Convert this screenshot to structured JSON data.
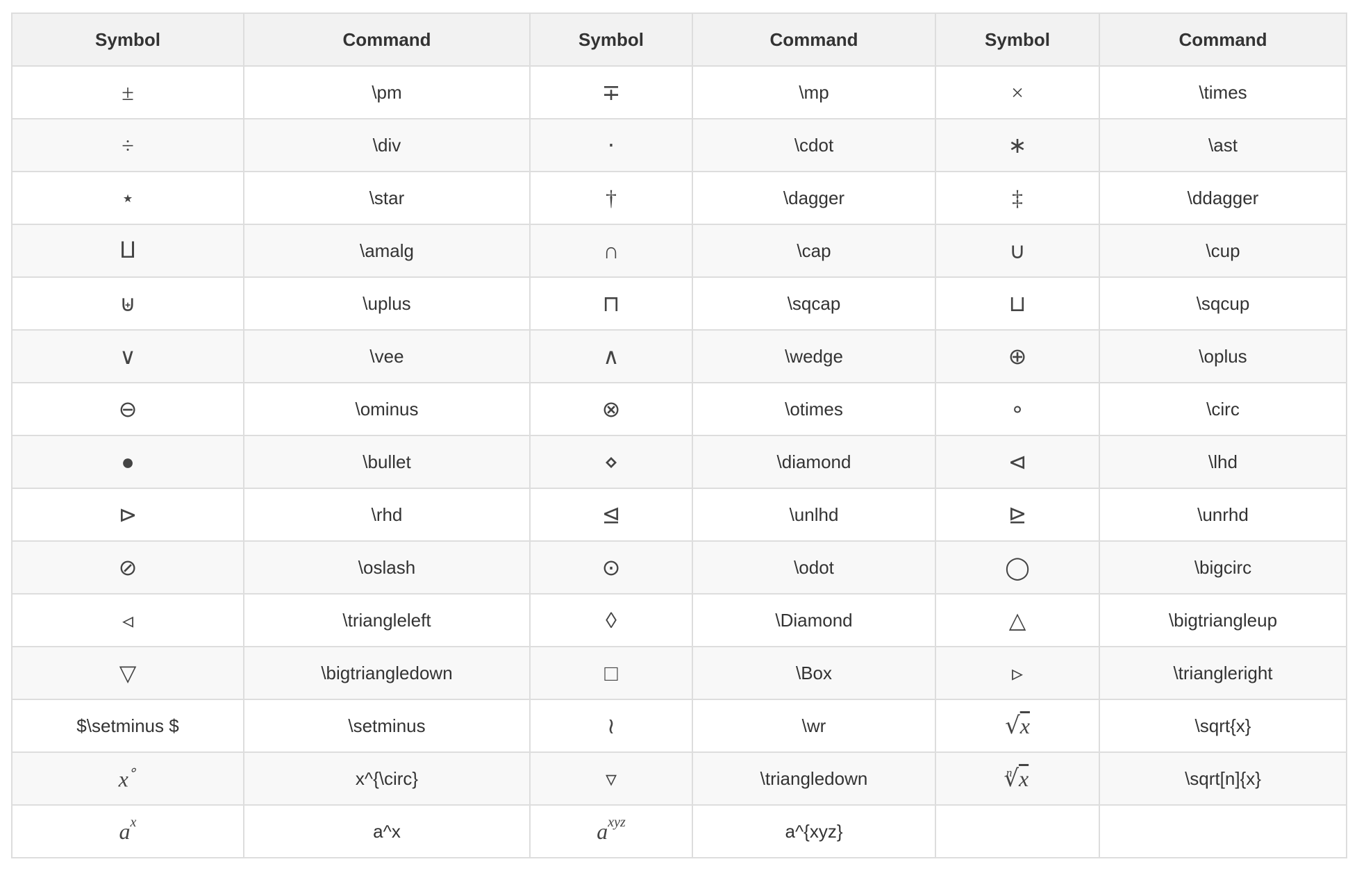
{
  "headers": [
    "Symbol",
    "Command",
    "Symbol",
    "Command",
    "Symbol",
    "Command"
  ],
  "rows": [
    [
      {
        "s": "±",
        "c": "\\pm"
      },
      {
        "s": "∓",
        "c": "\\mp"
      },
      {
        "s": "×",
        "c": "\\times"
      }
    ],
    [
      {
        "s": "÷",
        "c": "\\div"
      },
      {
        "s": "⋅",
        "c": "\\cdot"
      },
      {
        "s": "∗",
        "c": "\\ast"
      }
    ],
    [
      {
        "s": "⋆",
        "c": "\\star"
      },
      {
        "s": "†",
        "c": "\\dagger"
      },
      {
        "s": "‡",
        "c": "\\ddagger"
      }
    ],
    [
      {
        "s": "⨿",
        "c": "\\amalg"
      },
      {
        "s": "∩",
        "c": "\\cap"
      },
      {
        "s": "∪",
        "c": "\\cup"
      }
    ],
    [
      {
        "s": "⊎",
        "c": "\\uplus"
      },
      {
        "s": "⊓",
        "c": "\\sqcap"
      },
      {
        "s": "⊔",
        "c": "\\sqcup"
      }
    ],
    [
      {
        "s": "∨",
        "c": "\\vee"
      },
      {
        "s": "∧",
        "c": "\\wedge"
      },
      {
        "s": "⊕",
        "c": "\\oplus"
      }
    ],
    [
      {
        "s": "⊖",
        "c": "\\ominus"
      },
      {
        "s": "⊗",
        "c": "\\otimes"
      },
      {
        "s": "∘",
        "c": "\\circ"
      }
    ],
    [
      {
        "s": "●",
        "c": "\\bullet"
      },
      {
        "s": "⋄",
        "c": "\\diamond"
      },
      {
        "s": "⊲",
        "c": "\\lhd"
      }
    ],
    [
      {
        "s": "⊳",
        "c": "\\rhd"
      },
      {
        "s": "⊴",
        "c": "\\unlhd"
      },
      {
        "s": "⊵",
        "c": "\\unrhd"
      }
    ],
    [
      {
        "s": "⊘",
        "c": "\\oslash"
      },
      {
        "s": "⊙",
        "c": "\\odot"
      },
      {
        "s": "◯",
        "c": "\\bigcirc"
      }
    ],
    [
      {
        "s": "◃",
        "c": "\\triangleleft"
      },
      {
        "s": "◊",
        "c": "\\Diamond"
      },
      {
        "s": "△",
        "c": "\\bigtriangleup"
      }
    ],
    [
      {
        "s": "▽",
        "c": "\\bigtriangledown"
      },
      {
        "s": "□",
        "c": "\\Box"
      },
      {
        "s": "▹",
        "c": "\\triangleright"
      }
    ],
    [
      {
        "s": "$\\setminus $",
        "c": "\\setminus",
        "plain": true
      },
      {
        "s": "≀",
        "c": "\\wr"
      },
      {
        "s": "√x",
        "c": "\\sqrt{x}",
        "kind": "sqrt"
      }
    ],
    [
      {
        "s": "x°",
        "c": "x^{\\circ}",
        "kind": "pow",
        "base": "x",
        "exp": "∘"
      },
      {
        "s": "▿",
        "c": "\\triangledown"
      },
      {
        "s": "ⁿ√x",
        "c": "\\sqrt[n]{x}",
        "kind": "nroot"
      }
    ],
    [
      {
        "s": "aˣ",
        "c": "a^x",
        "kind": "pow",
        "base": "a",
        "exp": "x"
      },
      {
        "s": "aˣʸᶻ",
        "c": "a^{xyz}",
        "kind": "pow",
        "base": "a",
        "exp": "xyz"
      },
      {
        "s": "",
        "c": ""
      }
    ]
  ]
}
